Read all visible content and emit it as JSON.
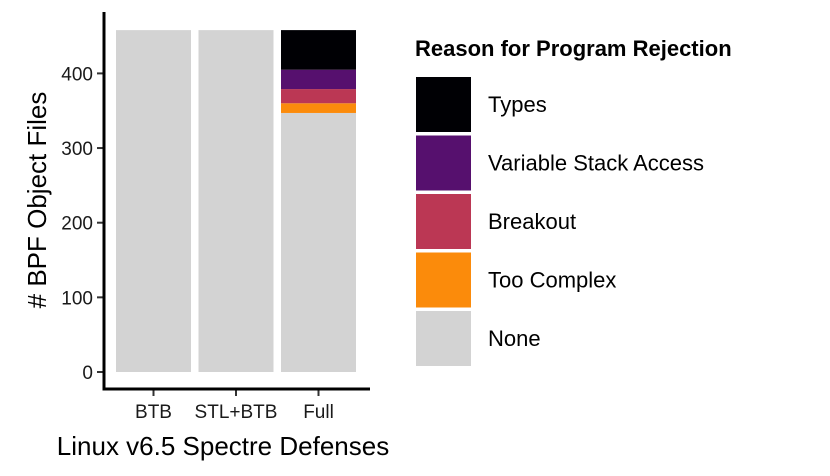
{
  "chart_data": {
    "type": "bar",
    "stacked": true,
    "title": "",
    "xlabel": "Linux v6.5 Spectre Defenses",
    "ylabel": "# BPF Object Files",
    "ylim": [
      0,
      470
    ],
    "yticks": [
      0,
      100,
      200,
      300,
      400
    ],
    "categories": [
      "BTB",
      "STL+BTB",
      "Full"
    ],
    "legend_title": "Reason for Program Rejection",
    "series": [
      {
        "name": "None",
        "color": "#d3d3d3",
        "values": [
          458,
          458,
          347
        ]
      },
      {
        "name": "Too Complex",
        "color": "#fb8b0b",
        "values": [
          0,
          0,
          13
        ]
      },
      {
        "name": "Breakout",
        "color": "#bb3754",
        "values": [
          0,
          0,
          19
        ]
      },
      {
        "name": "Variable Stack Access",
        "color": "#56106e",
        "values": [
          0,
          0,
          26
        ]
      },
      {
        "name": "Types",
        "color": "#000004",
        "values": [
          0,
          0,
          53
        ]
      }
    ],
    "legend_order": [
      "Types",
      "Variable Stack Access",
      "Breakout",
      "Too Complex",
      "None"
    ]
  }
}
